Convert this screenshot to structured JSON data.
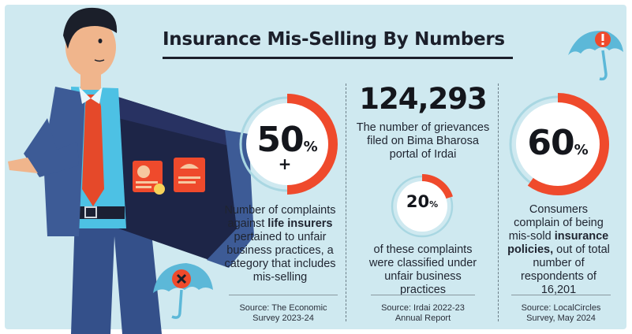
{
  "title": "Insurance Mis-Selling By Numbers",
  "stats": [
    {
      "value_number": "50",
      "value_suffix": "%",
      "value_plus": "+",
      "fraction": 0.5,
      "desc_before": "Number of complaints against",
      "desc_bold": "life insurers",
      "desc_after": "pertained to unfair business practices, a category that includes mis-selling",
      "source": "Source: The Economic Survey 2023-24"
    },
    {
      "big_number": "124,293",
      "big_desc": "The number of grievances filed on Bima Bharosa portal of Irdai",
      "value_number": "20",
      "value_suffix": "%",
      "fraction": 0.2,
      "desc": "of these complaints were classified under unfair business practices",
      "source": "Source: Irdai 2022-23 Annual Report"
    },
    {
      "value_number": "60",
      "value_suffix": "%",
      "fraction": 0.6,
      "desc_before": "Consumers complain of being mis-sold",
      "desc_bold": "insurance policies,",
      "desc_after": "out of total number of respondents of 16,201",
      "source": "Source: LocalCircles Survey, May 2024"
    }
  ],
  "colors": {
    "background": "#cfe9f0",
    "accent": "#ef4a2c",
    "ring_track": "#a9d7e2",
    "suit": "#3d5b96",
    "lining": "#1d2547",
    "tie": "#e5492a",
    "umbrella": "#5cb8d8"
  },
  "icons": [
    "man-in-suit-illustration",
    "warning-umbrella-icon",
    "cross-umbrella-icon",
    "policy-document-icon"
  ]
}
